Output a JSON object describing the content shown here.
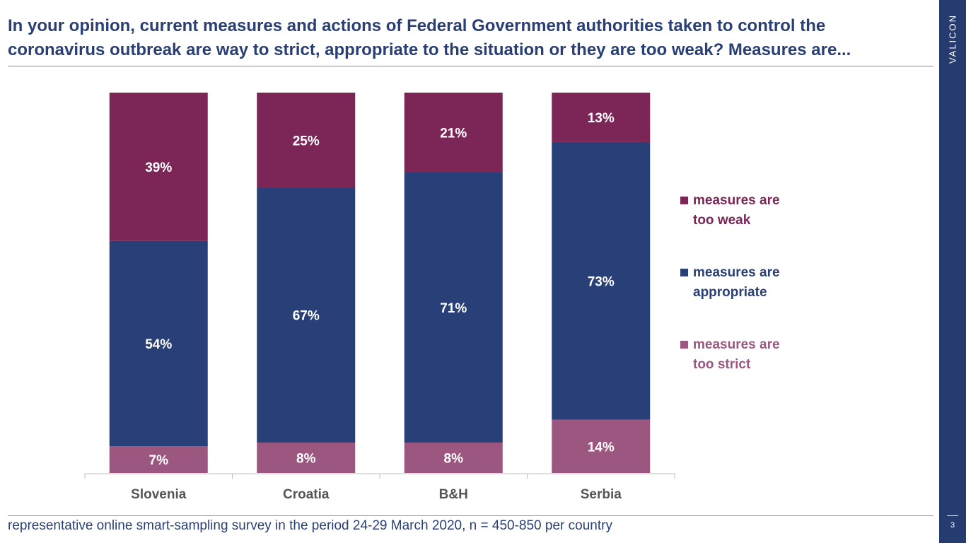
{
  "title": "In your opinion, current measures and actions of Federal Government authorities taken to control the coronavirus outbreak are way to strict, appropriate to the situation or they are too weak? Measures are...",
  "brand": "VALICON",
  "page_number": "3",
  "footnote": "representative online smart-sampling survey in the period 24-29 March 2020, n = 450-850 per country",
  "colors": {
    "title": "#2a4075",
    "sidebar": "#263b70",
    "too_weak": "#7b2657",
    "appropriate": "#293f78",
    "too_strict": "#9c5781",
    "axis_label": "#555555"
  },
  "chart_data": {
    "type": "bar",
    "stacked": true,
    "categories": [
      "Slovenia",
      "Croatia",
      "B&H",
      "Serbia"
    ],
    "series": [
      {
        "name": "measures are too strict",
        "values": [
          7,
          8,
          8,
          14
        ],
        "labels": [
          "7%",
          "8%",
          "8%",
          "14%"
        ],
        "color": "#9c5781"
      },
      {
        "name": "measures are appropriate",
        "values": [
          54,
          67,
          71,
          73
        ],
        "labels": [
          "54%",
          "67%",
          "71%",
          "73%"
        ],
        "color": "#293f78"
      },
      {
        "name": "measures are too weak",
        "values": [
          39,
          25,
          21,
          13
        ],
        "labels": [
          "39%",
          "25%",
          "21%",
          "13%"
        ],
        "color": "#7b2657"
      }
    ],
    "ylim": [
      0,
      100
    ],
    "legend_position": "right",
    "grid": false
  },
  "legend": {
    "items": [
      {
        "label": "measures are too weak",
        "color": "#7b2657"
      },
      {
        "label": "measures are appropriate",
        "color": "#293f78"
      },
      {
        "label": "measures are too strict",
        "color": "#9c5781"
      }
    ]
  }
}
